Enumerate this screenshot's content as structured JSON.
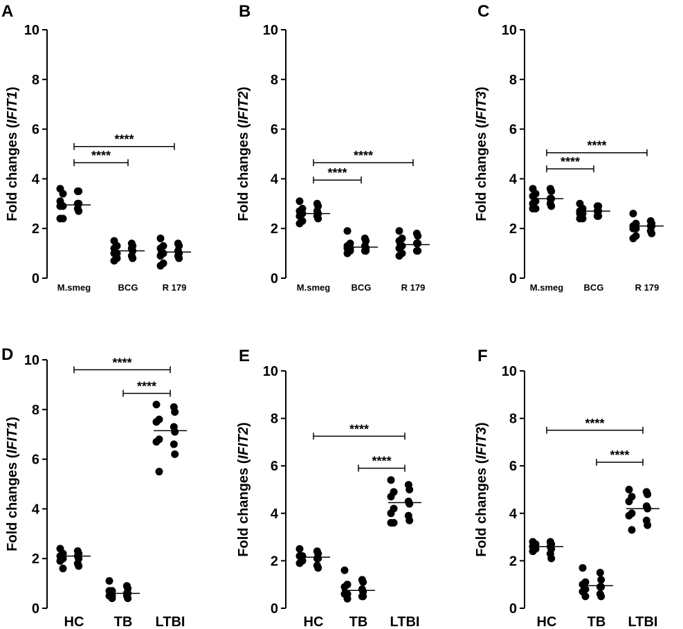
{
  "chart_data": [
    {
      "panel": "A",
      "type": "scatter",
      "ylabel": "Fold changes (IFIT1)",
      "ylabel_prefix": "Fold changes (",
      "ylabel_gene": "IFIT1",
      "ylabel_suffix": ")",
      "ylim": [
        0,
        10
      ],
      "yticks": [
        "0",
        "2",
        "4",
        "6",
        "8",
        "10"
      ],
      "categories": [
        "M.smeg",
        "BCG",
        "R 179"
      ],
      "series": [
        {
          "name": "M.smeg",
          "values": [
            3.6,
            3.5,
            3.5,
            3.4,
            3.1,
            3.0,
            3.0,
            2.9,
            2.9,
            2.8,
            2.7,
            2.4,
            2.4
          ],
          "mean": 2.95
        },
        {
          "name": "BCG",
          "values": [
            1.5,
            1.4,
            1.3,
            1.3,
            1.2,
            1.2,
            1.1,
            1.0,
            1.0,
            0.9,
            0.8,
            0.8,
            0.7
          ],
          "mean": 1.1
        },
        {
          "name": "R 179",
          "values": [
            1.6,
            1.4,
            1.3,
            1.3,
            1.2,
            1.1,
            1.0,
            1.0,
            0.9,
            0.9,
            0.8,
            0.6,
            0.5
          ],
          "mean": 1.05
        }
      ],
      "comparisons": [
        {
          "from": 0,
          "to": 1,
          "y": 4.65,
          "label": "****"
        },
        {
          "from": 0,
          "to": 2,
          "y": 5.3,
          "label": "****"
        }
      ]
    },
    {
      "panel": "B",
      "type": "scatter",
      "ylabel": "Fold changes (IFIT2)",
      "ylabel_prefix": "Fold changes (",
      "ylabel_gene": "IFIT2",
      "ylabel_suffix": ")",
      "ylim": [
        0,
        10
      ],
      "yticks": [
        "0",
        "2",
        "4",
        "6",
        "8",
        "10"
      ],
      "categories": [
        "M.smeg",
        "BCG",
        "R 179"
      ],
      "series": [
        {
          "name": "M.smeg",
          "values": [
            3.1,
            3.0,
            2.9,
            2.8,
            2.7,
            2.7,
            2.6,
            2.6,
            2.5,
            2.5,
            2.4,
            2.3,
            2.2
          ],
          "mean": 2.6
        },
        {
          "name": "BCG",
          "values": [
            1.9,
            1.6,
            1.5,
            1.4,
            1.3,
            1.3,
            1.2,
            1.2,
            1.2,
            1.1,
            1.1,
            1.1,
            1.0
          ],
          "mean": 1.25
        },
        {
          "name": "R 179",
          "values": [
            1.9,
            1.8,
            1.7,
            1.6,
            1.5,
            1.4,
            1.4,
            1.3,
            1.2,
            1.1,
            1.1,
            1.0,
            0.9
          ],
          "mean": 1.35
        }
      ],
      "comparisons": [
        {
          "from": 0,
          "to": 1,
          "y": 3.95,
          "label": "****"
        },
        {
          "from": 0,
          "to": 2,
          "y": 4.65,
          "label": "****"
        }
      ]
    },
    {
      "panel": "C",
      "type": "scatter",
      "ylabel": "Fold changes (IFIT3)",
      "ylabel_prefix": "Fold changes (",
      "ylabel_gene": "IFIT3",
      "ylabel_suffix": ")",
      "ylim": [
        0,
        10
      ],
      "yticks": [
        "0",
        "2",
        "4",
        "6",
        "8",
        "10"
      ],
      "categories": [
        "M.smeg",
        "BCG",
        "R 179"
      ],
      "series": [
        {
          "name": "M.smeg",
          "values": [
            3.6,
            3.6,
            3.5,
            3.4,
            3.3,
            3.2,
            3.2,
            3.1,
            3.0,
            3.0,
            2.9,
            2.8,
            2.8
          ],
          "mean": 3.2
        },
        {
          "name": "BCG",
          "values": [
            3.0,
            2.9,
            2.9,
            2.8,
            2.7,
            2.7,
            2.7,
            2.6,
            2.6,
            2.5,
            2.5,
            2.4,
            2.4
          ],
          "mean": 2.7
        },
        {
          "name": "R 179",
          "values": [
            2.6,
            2.3,
            2.2,
            2.2,
            2.1,
            2.1,
            2.1,
            2.0,
            2.0,
            1.9,
            1.8,
            1.7,
            1.6
          ],
          "mean": 2.1
        }
      ],
      "comparisons": [
        {
          "from": 0,
          "to": 1,
          "y": 4.4,
          "label": "****"
        },
        {
          "from": 0,
          "to": 2,
          "y": 5.05,
          "label": "****"
        }
      ]
    },
    {
      "panel": "D",
      "type": "scatter",
      "ylabel": "Fold changes (IFIT1)",
      "ylabel_prefix": "Fold changes (",
      "ylabel_gene": "IFIT1",
      "ylabel_suffix": ")",
      "ylim": [
        0,
        10
      ],
      "yticks": [
        "0",
        "2",
        "4",
        "6",
        "8",
        "10"
      ],
      "categories": [
        "HC",
        "TB",
        "LTBI"
      ],
      "series": [
        {
          "name": "HC",
          "values": [
            2.4,
            2.3,
            2.2,
            2.2,
            2.1,
            2.1,
            2.0,
            2.0,
            1.9,
            1.8,
            1.7,
            1.6
          ],
          "mean": 2.1
        },
        {
          "name": "TB",
          "values": [
            1.1,
            0.9,
            0.8,
            0.7,
            0.7,
            0.6,
            0.6,
            0.5,
            0.5,
            0.5,
            0.4,
            0.4
          ],
          "mean": 0.6
        },
        {
          "name": "LTBI",
          "values": [
            8.2,
            8.1,
            7.9,
            7.6,
            7.5,
            7.3,
            7.1,
            6.8,
            6.7,
            6.6,
            6.2,
            5.5
          ],
          "mean": 7.15
        }
      ],
      "comparisons": [
        {
          "from": 0,
          "to": 2,
          "y": 9.6,
          "label": "****"
        },
        {
          "from": 1,
          "to": 2,
          "y": 8.65,
          "label": "****"
        }
      ]
    },
    {
      "panel": "E",
      "type": "scatter",
      "ylabel": "Fold changes (IFIT2)",
      "ylabel_prefix": "Fold changes (",
      "ylabel_gene": "IFIT2",
      "ylabel_suffix": ")",
      "ylim": [
        0,
        10
      ],
      "yticks": [
        "0",
        "2",
        "4",
        "6",
        "8",
        "10"
      ],
      "categories": [
        "HC",
        "TB",
        "LTBI"
      ],
      "series": [
        {
          "name": "HC",
          "values": [
            2.5,
            2.4,
            2.3,
            2.2,
            2.2,
            2.1,
            2.1,
            2.0,
            1.9,
            1.8,
            1.7
          ],
          "mean": 2.15
        },
        {
          "name": "TB",
          "values": [
            1.6,
            1.2,
            1.1,
            1.0,
            0.9,
            0.8,
            0.7,
            0.6,
            0.6,
            0.5,
            0.5,
            0.4
          ],
          "mean": 0.75
        },
        {
          "name": "LTBI",
          "values": [
            5.4,
            5.2,
            5.0,
            4.9,
            4.7,
            4.5,
            4.4,
            4.2,
            4.0,
            3.9,
            3.7,
            3.6,
            3.6
          ],
          "mean": 4.45
        }
      ],
      "comparisons": [
        {
          "from": 0,
          "to": 2,
          "y": 7.25,
          "label": "****"
        },
        {
          "from": 1,
          "to": 2,
          "y": 5.9,
          "label": "****"
        }
      ]
    },
    {
      "panel": "F",
      "type": "scatter",
      "ylabel": "Fold changes (IFIT3)",
      "ylabel_prefix": "Fold changes (",
      "ylabel_gene": "IFIT3",
      "ylabel_suffix": ")",
      "ylim": [
        0,
        10
      ],
      "yticks": [
        "0",
        "2",
        "4",
        "6",
        "8",
        "10"
      ],
      "categories": [
        "HC",
        "TB",
        "LTBI"
      ],
      "series": [
        {
          "name": "HC",
          "values": [
            2.8,
            2.8,
            2.7,
            2.7,
            2.6,
            2.6,
            2.5,
            2.5,
            2.4,
            2.3,
            2.1
          ],
          "mean": 2.6
        },
        {
          "name": "TB",
          "values": [
            1.7,
            1.5,
            1.2,
            1.1,
            1.0,
            0.9,
            0.9,
            0.8,
            0.7,
            0.6,
            0.5,
            0.5
          ],
          "mean": 0.95
        },
        {
          "name": "LTBI",
          "values": [
            5.0,
            4.9,
            4.8,
            4.7,
            4.5,
            4.3,
            4.2,
            4.0,
            3.9,
            3.7,
            3.5,
            3.3
          ],
          "mean": 4.2
        }
      ],
      "comparisons": [
        {
          "from": 0,
          "to": 2,
          "y": 7.5,
          "label": "****"
        },
        {
          "from": 1,
          "to": 2,
          "y": 6.15,
          "label": "****"
        }
      ]
    }
  ]
}
